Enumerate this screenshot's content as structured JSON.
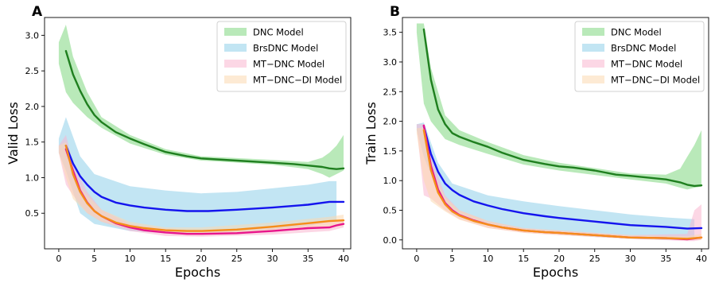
{
  "chart_data": [
    {
      "type": "line",
      "panel_label": "A",
      "xlabel": "Epochs",
      "ylabel": "Valid Loss",
      "xlim": [
        -2,
        41
      ],
      "ylim": [
        0.0,
        3.25
      ],
      "xticks": [
        0,
        5,
        10,
        15,
        20,
        25,
        30,
        35,
        40
      ],
      "yticks": [
        0.5,
        1.0,
        1.5,
        2.0,
        2.5,
        3.0
      ],
      "ytick_labels": [
        "0.5",
        "1.0",
        "1.5",
        "2.0",
        "2.5",
        "3.0"
      ],
      "grid": false,
      "legend_position": "top-right",
      "legend": [
        "DNC Model",
        "BrsDNC Model",
        "MT−DNC Model",
        "MT−DNC−DI Model"
      ],
      "series": [
        {
          "name": "DNC Model",
          "line_color": "#1f7f1f",
          "band_color": "#7fd77f",
          "x": [
            1,
            2,
            3,
            4,
            5,
            6,
            8,
            10,
            12,
            15,
            18,
            20,
            25,
            30,
            33,
            35,
            37,
            38,
            39,
            40
          ],
          "y": [
            2.78,
            2.45,
            2.22,
            2.03,
            1.88,
            1.78,
            1.64,
            1.55,
            1.47,
            1.36,
            1.3,
            1.27,
            1.24,
            1.21,
            1.19,
            1.17,
            1.15,
            1.13,
            1.12,
            1.13
          ],
          "band_x": [
            0,
            1,
            2,
            4,
            6,
            10,
            15,
            20,
            30,
            35,
            37,
            38,
            39,
            40
          ],
          "band_low": [
            2.6,
            2.2,
            2.05,
            1.85,
            1.7,
            1.48,
            1.32,
            1.24,
            1.18,
            1.12,
            1.05,
            1.0,
            1.05,
            1.1
          ],
          "band_high": [
            2.9,
            3.15,
            2.7,
            2.2,
            1.85,
            1.6,
            1.4,
            1.3,
            1.25,
            1.22,
            1.28,
            1.35,
            1.45,
            1.6
          ]
        },
        {
          "name": "BrsDNC Model",
          "line_color": "#1414ee",
          "band_color": "#8fd0ea",
          "x": [
            1,
            2,
            3,
            4,
            5,
            6,
            8,
            10,
            12,
            15,
            18,
            21,
            25,
            30,
            35,
            38,
            40
          ],
          "y": [
            1.45,
            1.2,
            1.02,
            0.9,
            0.8,
            0.73,
            0.65,
            0.61,
            0.58,
            0.55,
            0.53,
            0.53,
            0.55,
            0.58,
            0.62,
            0.66,
            0.66
          ],
          "band_x": [
            0,
            1,
            3,
            5,
            10,
            15,
            20,
            25,
            30,
            35,
            38,
            39
          ],
          "band_low": [
            1.35,
            1.1,
            0.5,
            0.35,
            0.25,
            0.22,
            0.22,
            0.24,
            0.27,
            0.32,
            0.38,
            0.4
          ],
          "band_high": [
            1.55,
            1.85,
            1.3,
            1.05,
            0.88,
            0.82,
            0.78,
            0.8,
            0.85,
            0.9,
            0.95,
            0.95
          ]
        },
        {
          "name": "MT−DNC Model",
          "line_color": "#e8158c",
          "band_color": "#f9b6cf",
          "x": [
            1,
            2,
            3,
            4,
            5,
            6,
            8,
            10,
            12,
            15,
            18,
            20,
            25,
            30,
            35,
            38,
            39,
            40
          ],
          "y": [
            1.4,
            1.1,
            0.82,
            0.65,
            0.53,
            0.46,
            0.36,
            0.3,
            0.26,
            0.23,
            0.21,
            0.21,
            0.22,
            0.25,
            0.29,
            0.3,
            0.33,
            0.35
          ],
          "band_x": [
            0,
            1,
            2,
            4,
            6,
            10,
            15,
            20,
            30,
            38,
            40
          ],
          "band_low": [
            1.35,
            0.9,
            0.75,
            0.5,
            0.38,
            0.25,
            0.18,
            0.17,
            0.2,
            0.25,
            0.3
          ],
          "band_high": [
            1.45,
            1.6,
            1.2,
            0.8,
            0.55,
            0.35,
            0.28,
            0.25,
            0.3,
            0.38,
            0.42
          ]
        },
        {
          "name": "MT−DNC−DI Model",
          "line_color": "#f58d1a",
          "band_color": "#fcd9b0",
          "x": [
            1,
            2,
            3,
            4,
            5,
            6,
            8,
            10,
            12,
            15,
            18,
            20,
            25,
            30,
            35,
            38,
            40
          ],
          "y": [
            1.45,
            1.05,
            0.8,
            0.64,
            0.53,
            0.46,
            0.37,
            0.32,
            0.29,
            0.26,
            0.25,
            0.25,
            0.27,
            0.31,
            0.36,
            0.39,
            0.4
          ],
          "band_x": [
            0,
            1,
            2,
            4,
            6,
            10,
            15,
            20,
            30,
            38,
            40
          ],
          "band_low": [
            1.35,
            1.0,
            0.7,
            0.5,
            0.38,
            0.28,
            0.22,
            0.2,
            0.25,
            0.3,
            0.32
          ],
          "band_high": [
            1.45,
            1.5,
            1.0,
            0.75,
            0.55,
            0.38,
            0.3,
            0.3,
            0.37,
            0.45,
            0.48
          ]
        }
      ]
    },
    {
      "type": "line",
      "panel_label": "B",
      "xlabel": "Epochs",
      "ylabel": "Train Loss",
      "xlim": [
        -2,
        41
      ],
      "ylim": [
        -0.15,
        3.75
      ],
      "xticks": [
        0,
        5,
        10,
        15,
        20,
        25,
        30,
        35,
        40
      ],
      "yticks": [
        0.0,
        0.5,
        1.0,
        1.5,
        2.0,
        2.5,
        3.0,
        3.5
      ],
      "ytick_labels": [
        "0.0",
        "0.5",
        "1.0",
        "1.5",
        "2.0",
        "2.5",
        "3.0",
        "3.5"
      ],
      "grid": false,
      "legend_position": "top-right",
      "legend": [
        "DNC Model",
        "BrsDNC Model",
        "MT−DNC Model",
        "MT−DNC−DI Model"
      ],
      "series": [
        {
          "name": "DNC Model",
          "line_color": "#1f7f1f",
          "band_color": "#7fd77f",
          "x": [
            1,
            2,
            3,
            4,
            5,
            6,
            8,
            10,
            12,
            15,
            18,
            20,
            22,
            25,
            28,
            30,
            35,
            37,
            38,
            39,
            40
          ],
          "y": [
            3.55,
            2.7,
            2.2,
            1.95,
            1.8,
            1.74,
            1.65,
            1.57,
            1.47,
            1.35,
            1.28,
            1.24,
            1.22,
            1.17,
            1.1,
            1.08,
            1.02,
            0.97,
            0.93,
            0.91,
            0.92
          ],
          "band_x": [
            0,
            1,
            2,
            4,
            6,
            10,
            15,
            20,
            30,
            35,
            37,
            38,
            39,
            40
          ],
          "band_low": [
            3.5,
            2.3,
            2.0,
            1.7,
            1.6,
            1.45,
            1.27,
            1.17,
            1.02,
            0.95,
            0.88,
            0.85,
            0.88,
            0.9
          ],
          "band_high": [
            3.65,
            3.65,
            2.9,
            2.1,
            1.85,
            1.65,
            1.43,
            1.3,
            1.12,
            1.1,
            1.2,
            1.4,
            1.6,
            1.85
          ]
        },
        {
          "name": "BrsDNC Model",
          "line_color": "#1414ee",
          "band_color": "#8fd0ea",
          "x": [
            1,
            2,
            3,
            4,
            5,
            6,
            8,
            10,
            12,
            15,
            18,
            20,
            25,
            30,
            35,
            38,
            40
          ],
          "y": [
            1.92,
            1.45,
            1.15,
            0.95,
            0.84,
            0.76,
            0.65,
            0.58,
            0.52,
            0.45,
            0.4,
            0.37,
            0.31,
            0.25,
            0.22,
            0.19,
            0.2
          ],
          "band_x": [
            0,
            1,
            3,
            5,
            10,
            15,
            20,
            25,
            30,
            35,
            39
          ],
          "band_low": [
            1.85,
            1.4,
            0.8,
            0.45,
            0.27,
            0.15,
            0.1,
            0.05,
            0.02,
            0.0,
            0.0
          ],
          "band_high": [
            1.95,
            1.98,
            1.3,
            0.95,
            0.75,
            0.65,
            0.57,
            0.5,
            0.43,
            0.38,
            0.35
          ]
        },
        {
          "name": "MT−DNC Model",
          "line_color": "#e8158c",
          "band_color": "#f9b6cf",
          "x": [
            1,
            2,
            3,
            4,
            5,
            6,
            8,
            10,
            12,
            15,
            18,
            20,
            25,
            30,
            35,
            38,
            40
          ],
          "y": [
            1.93,
            1.25,
            0.85,
            0.62,
            0.5,
            0.42,
            0.33,
            0.26,
            0.21,
            0.16,
            0.13,
            0.12,
            0.08,
            0.04,
            0.03,
            0.01,
            0.04
          ],
          "band_x": [
            0,
            1,
            2,
            4,
            6,
            10,
            15,
            20,
            30,
            38,
            39,
            40
          ],
          "band_low": [
            1.9,
            0.75,
            0.7,
            0.5,
            0.35,
            0.2,
            0.12,
            0.08,
            0.02,
            -0.02,
            -0.02,
            0.0
          ],
          "band_high": [
            1.95,
            1.95,
            1.4,
            0.75,
            0.5,
            0.32,
            0.2,
            0.16,
            0.08,
            0.1,
            0.5,
            0.6
          ]
        },
        {
          "name": "MT−DNC−DI Model",
          "line_color": "#f58d1a",
          "band_color": "#fcd9b0",
          "x": [
            1,
            2,
            3,
            4,
            5,
            6,
            8,
            10,
            12,
            15,
            18,
            20,
            25,
            30,
            35,
            38,
            40
          ],
          "y": [
            1.85,
            1.18,
            0.8,
            0.6,
            0.48,
            0.41,
            0.32,
            0.26,
            0.21,
            0.16,
            0.13,
            0.12,
            0.08,
            0.04,
            0.03,
            0.02,
            0.04
          ],
          "band_x": [
            0,
            1,
            2,
            4,
            6,
            10,
            15,
            20,
            30,
            38,
            40
          ],
          "band_low": [
            1.8,
            1.0,
            0.65,
            0.48,
            0.34,
            0.2,
            0.12,
            0.08,
            0.02,
            0.0,
            0.0
          ],
          "band_high": [
            1.88,
            1.9,
            1.2,
            0.72,
            0.5,
            0.32,
            0.2,
            0.16,
            0.08,
            0.06,
            0.1
          ]
        }
      ]
    }
  ]
}
